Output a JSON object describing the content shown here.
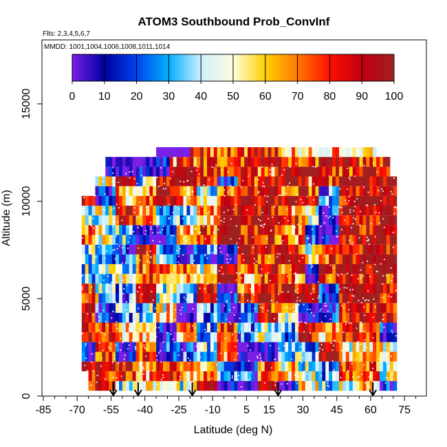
{
  "chart_data": {
    "type": "heatmap",
    "title": "ATOM3 Southbound Prob_ConvInf",
    "subtitle_flights": "Flts: 2,3,4,5,6,7",
    "subtitle_dates": "MMDD: 1001,1004,1006,1008,1011,1014",
    "xlabel": "Latitude (deg N)",
    "ylabel": "Altitude (m)",
    "xlim": [
      -85,
      85
    ],
    "ylim": [
      0,
      17500
    ],
    "x_ticks": [
      -85,
      -70,
      -55,
      -40,
      -25,
      -10,
      5,
      15,
      30,
      45,
      60,
      75
    ],
    "x_tick_labels": [
      "-85",
      "-70",
      "-55",
      "-40",
      "-25",
      "-10",
      "5",
      "15",
      "30",
      "45",
      "60",
      "75"
    ],
    "y_ticks": [
      0,
      5000,
      10000,
      15000
    ],
    "y_tick_labels": [
      "0",
      "5000",
      "10000",
      "15000"
    ],
    "colorbar": {
      "min": 0,
      "max": 100,
      "ticks": [
        0,
        10,
        20,
        30,
        40,
        50,
        60,
        70,
        80,
        90,
        100
      ],
      "tick_labels": [
        "0",
        "10",
        "20",
        "30",
        "40",
        "50",
        "60",
        "70",
        "80",
        "90",
        "100"
      ],
      "colors": [
        "#7a1fe6",
        "#0000a0",
        "#0044ee",
        "#00b0ff",
        "#cfefff",
        "#fffde0",
        "#ffd000",
        "#ff7a00",
        "#ff1000",
        "#c00010",
        "#a02020"
      ]
    },
    "profile_markers_lat": [
      -54,
      -43,
      -19,
      19,
      61
    ],
    "field": {
      "lat_min": -68,
      "lat_max": 71,
      "lat_step": 1.5,
      "alt_min": 500,
      "alt_max": 12500,
      "alt_step": 500,
      "note": "Gridded Prob_ConvInf (%) along southbound flight tracks; values estimated qualitatively from colors"
    }
  }
}
